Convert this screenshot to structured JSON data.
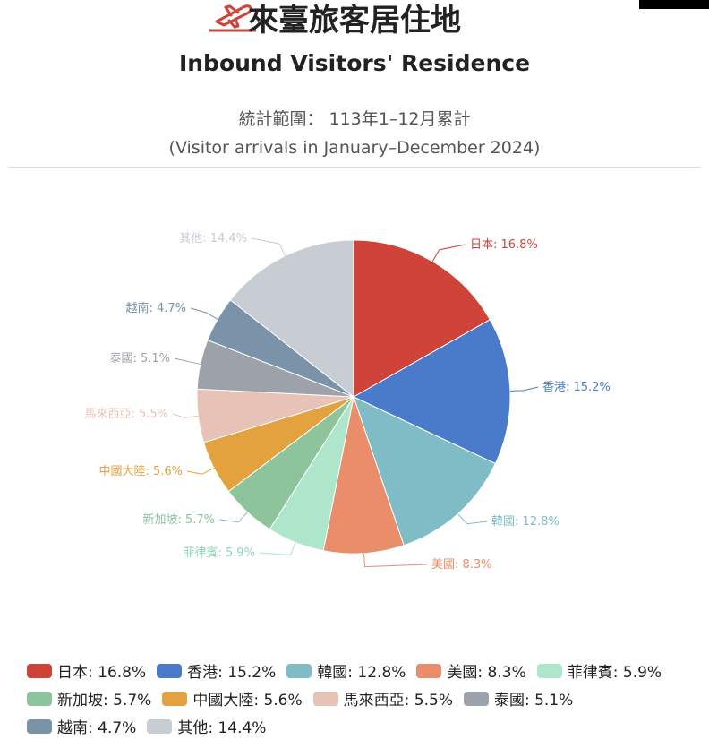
{
  "header": {
    "title_zh": "來臺旅客居住地",
    "title_en": "Inbound Visitors' Residence",
    "scope_zh": "統計範圍： 113年1–12月累計",
    "scope_en": "(Visitor arrivals in January–December 2024)"
  },
  "chart_data": {
    "type": "pie",
    "title": "",
    "slices": [
      {
        "name": "日本",
        "value": 16.8,
        "label": "日本: 16.8%",
        "color": "#CF4339"
      },
      {
        "name": "香港",
        "value": 15.2,
        "label": "香港: 15.2%",
        "color": "#4A7BCB"
      },
      {
        "name": "韓國",
        "value": 12.8,
        "label": "韓國: 12.8%",
        "color": "#7FBCC6"
      },
      {
        "name": "美國",
        "value": 8.3,
        "label": "美國: 8.3%",
        "color": "#E98D6B"
      },
      {
        "name": "菲律賓",
        "value": 5.9,
        "label": "菲律賓: 5.9%",
        "color": "#AEE6CC"
      },
      {
        "name": "新加坡",
        "value": 5.7,
        "label": "新加坡: 5.7%",
        "color": "#8DC49C"
      },
      {
        "name": "中國大陸",
        "value": 5.6,
        "label": "中國大陸: 5.6%",
        "color": "#E3A23D"
      },
      {
        "name": "馬來西亞",
        "value": 5.5,
        "label": "馬來西亞: 5.5%",
        "color": "#E7C3B7"
      },
      {
        "name": "泰國",
        "value": 5.1,
        "label": "泰國: 5.1%",
        "color": "#9DA1A9"
      },
      {
        "name": "越南",
        "value": 4.7,
        "label": "越南: 4.7%",
        "color": "#7A93A8"
      },
      {
        "name": "其他",
        "value": 14.4,
        "label": "其他: 14.4%",
        "color": "#C8CDD3"
      }
    ],
    "legend_position": "bottom"
  }
}
